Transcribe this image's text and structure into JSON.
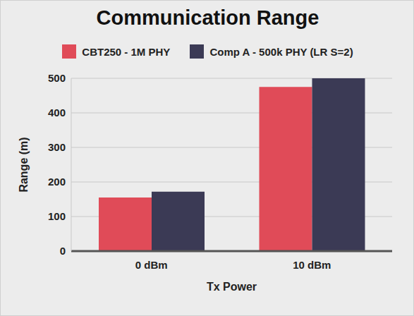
{
  "chart_data": {
    "type": "bar",
    "title": "Communication Range",
    "categories": [
      "0 dBm",
      "10 dBm"
    ],
    "series": [
      {
        "name": "CBT250 - 1M PHY",
        "color": "#e04b58",
        "values": [
          155,
          475
        ]
      },
      {
        "name": "Comp A - 500k PHY (LR S=2)",
        "color": "#3b3a55",
        "values": [
          172,
          500
        ]
      }
    ],
    "x_label": "Tx Power",
    "y_label": "Range (m)",
    "ylim": [
      0,
      500
    ],
    "yticks": [
      0,
      100,
      200,
      300,
      400,
      500
    ],
    "grid": true,
    "legend": "top"
  }
}
